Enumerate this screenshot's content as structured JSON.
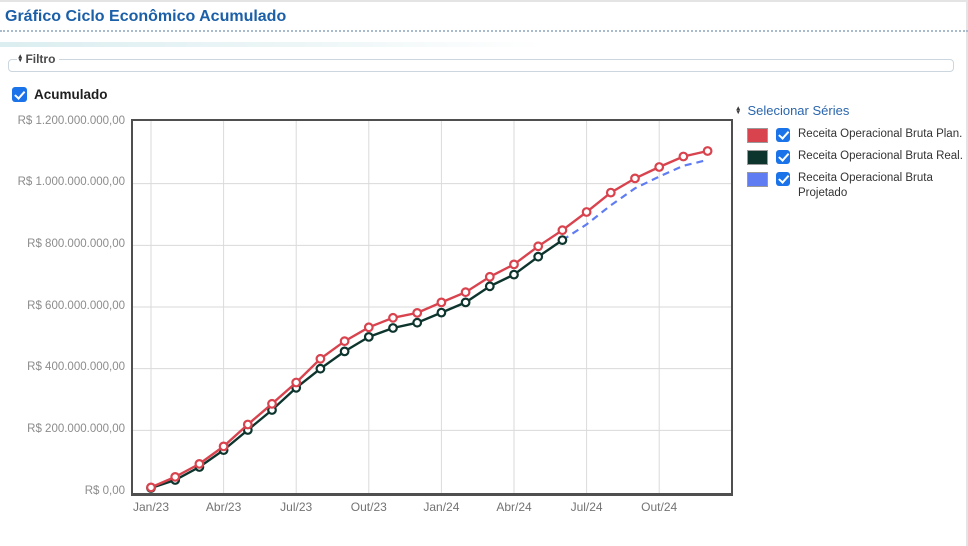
{
  "page": {
    "title": "Gráfico Ciclo Econômico Acumulado"
  },
  "filter": {
    "label": "Filtro",
    "collapse_icon": "updown-arrows"
  },
  "accumulated": {
    "label": "Acumulado",
    "checked": true
  },
  "series_panel": {
    "title": "Selecionar Séries",
    "collapse_icon": "updown-arrows",
    "items": [
      {
        "label": "Receita Operacional Bruta Plan.",
        "color": "#d8434e",
        "checked": true
      },
      {
        "label": "Receita Operacional Bruta Real.",
        "color": "#0d352e",
        "checked": true
      },
      {
        "label": "Receita Operacional Bruta Projetado",
        "color": "#5f7cf3",
        "checked": true
      }
    ]
  },
  "colors": {
    "title_blue": "#1a5fa8",
    "legend_title_blue": "#2a66ad",
    "checkbox_blue": "#1a73e8",
    "grid": "#dadada",
    "plot_border": "#4f4f4f",
    "axis_text": "#8c8c8c"
  },
  "chart_data": {
    "type": "line",
    "x_unit": "month",
    "n_points": 24,
    "x_range": [
      "Jan/23",
      "Dez/24"
    ],
    "x_tick_labels": [
      "Jan/23",
      "Abr/23",
      "Jul/23",
      "Out/23",
      "Jan/24",
      "Abr/24",
      "Jul/24",
      "Out/24"
    ],
    "x_tick_indices": [
      0,
      3,
      6,
      9,
      12,
      15,
      18,
      21
    ],
    "ylim_millions": [
      0,
      1200
    ],
    "grid": true,
    "currency": "R$",
    "y_ticks": [
      {
        "label": "R$ 1.200.000.000,00",
        "value_millions": 1200
      },
      {
        "label": "R$ 1.000.000.000,00",
        "value_millions": 1000
      },
      {
        "label": "R$ 800.000.000,00",
        "value_millions": 800
      },
      {
        "label": "R$ 600.000.000,00",
        "value_millions": 600
      },
      {
        "label": "R$ 400.000.000,00",
        "value_millions": 400
      },
      {
        "label": "R$ 200.000.000,00",
        "value_millions": 200
      },
      {
        "label": "R$ 0,00",
        "value_millions": 0
      }
    ],
    "series": [
      {
        "name": "Receita Operacional Bruta Plan.",
        "color": "#d8434e",
        "style": "solid",
        "marker": "ring",
        "start_index": 0,
        "values_millions": [
          15,
          49,
          91,
          148,
          219,
          286,
          355,
          432,
          489,
          534,
          565,
          581,
          615,
          648,
          698,
          738,
          797,
          849,
          908,
          971,
          1017,
          1054,
          1088,
          1106
        ]
      },
      {
        "name": "Receita Operacional Bruta Real.",
        "color": "#0d352e",
        "style": "solid",
        "marker": "ring",
        "start_index": 0,
        "values_millions": [
          13,
          39,
          81,
          136,
          201,
          266,
          338,
          400,
          456,
          503,
          532,
          549,
          582,
          615,
          667,
          705,
          763,
          817
        ]
      },
      {
        "name": "Receita Operacional Bruta Projetado",
        "color": "#5f7cf3",
        "style": "dashed",
        "marker": "none",
        "start_index": 17,
        "values_millions": [
          817,
          868,
          930,
          985,
          1023,
          1058,
          1077
        ]
      }
    ]
  }
}
